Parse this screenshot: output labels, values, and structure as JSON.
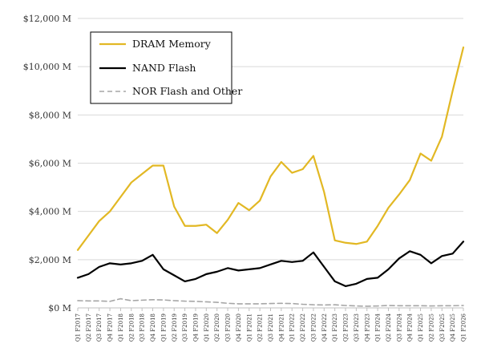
{
  "chart_data": {
    "type": "line",
    "title": "",
    "xlabel": "",
    "ylabel": "",
    "ylim": [
      0,
      12000
    ],
    "y_ticks": [
      {
        "value": 0,
        "label": "$0 M"
      },
      {
        "value": 2000,
        "label": "$2,000 M"
      },
      {
        "value": 4000,
        "label": "$4,000 M"
      },
      {
        "value": 6000,
        "label": "$6,000 M"
      },
      {
        "value": 8000,
        "label": "$8,000 M"
      },
      {
        "value": 10000,
        "label": "$10,000 M"
      },
      {
        "value": 12000,
        "label": "$12,000 M"
      }
    ],
    "grid": "horizontal",
    "legend_position": "top-left",
    "categories": [
      "Q1 F2017",
      "Q2 F2017",
      "Q3 F2017",
      "Q4 F2017",
      "Q1 F2018",
      "Q2 F2018",
      "Q3 F2018",
      "Q4 F2018",
      "Q1 F2019",
      "Q2 F2019",
      "Q3 F2019",
      "Q4 F2019",
      "Q1 F2020",
      "Q2 F2020",
      "Q3 F2020",
      "Q4 F2020",
      "Q1 F2021",
      "Q2 F2021",
      "Q3 F2021",
      "Q4 F2021",
      "Q1 F2022",
      "Q2 F2022",
      "Q3 F2022",
      "Q4 F2022",
      "Q1 F2023",
      "Q2 F2023",
      "Q3 F2023",
      "Q4 F2023",
      "Q1 F2024",
      "Q2 F2024",
      "Q3 F2024",
      "Q4 F2024",
      "Q1 F2025",
      "Q2 F2025",
      "Q3 F2025",
      "Q4 F2025",
      "Q1 F2026"
    ],
    "series": [
      {
        "name": "DRAM Memory",
        "color": "#e2b824",
        "style": "solid",
        "values": [
          2400,
          3000,
          3600,
          4000,
          4600,
          5200,
          5550,
          5900,
          5900,
          4200,
          3400,
          3400,
          3450,
          3100,
          3650,
          4350,
          4050,
          4450,
          5450,
          6050,
          5600,
          5750,
          6300,
          4800,
          2800,
          2700,
          2650,
          2750,
          3400,
          4150,
          4700,
          5300,
          6400,
          6100,
          7100,
          9000,
          10800
        ]
      },
      {
        "name": "NAND Flash",
        "color": "#000000",
        "style": "solid",
        "values": [
          1250,
          1400,
          1700,
          1850,
          1800,
          1850,
          1950,
          2200,
          1600,
          1350,
          1100,
          1200,
          1400,
          1500,
          1650,
          1550,
          1600,
          1650,
          1800,
          1950,
          1900,
          1950,
          2300,
          1700,
          1100,
          900,
          1000,
          1200,
          1250,
          1600,
          2050,
          2350,
          2200,
          1850,
          2150,
          2250,
          2750
        ]
      },
      {
        "name": "NOR Flash and Other",
        "color": "#a6a6a6",
        "style": "dashed",
        "values": [
          300,
          290,
          290,
          270,
          380,
          300,
          320,
          340,
          330,
          300,
          280,
          270,
          250,
          230,
          190,
          170,
          170,
          170,
          180,
          190,
          180,
          150,
          130,
          120,
          130,
          100,
          80,
          70,
          80,
          100,
          90,
          90,
          90,
          80,
          90,
          90,
          100
        ]
      }
    ]
  }
}
